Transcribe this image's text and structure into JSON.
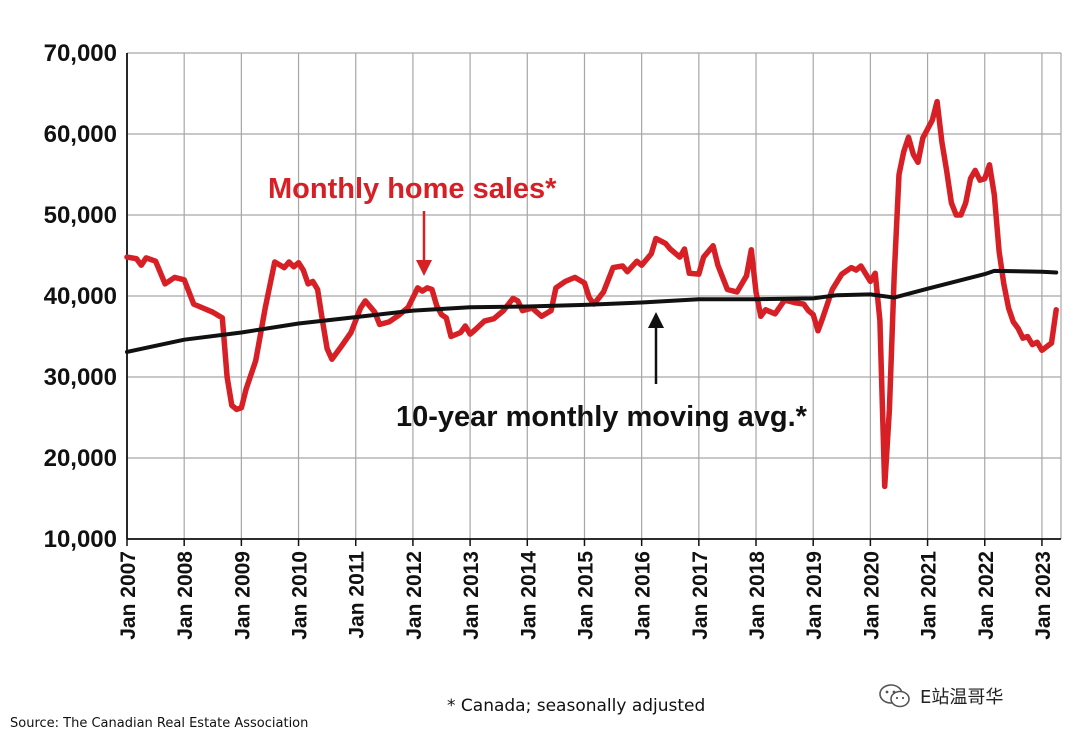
{
  "footnote": "* Canada; seasonally adjusted",
  "source": "Source: The Canadian Real Estate Association",
  "watermark": "E站温哥华",
  "chart_data": {
    "type": "line",
    "title": "",
    "xlabel": "",
    "ylabel": "",
    "ylim": [
      10000,
      70000
    ],
    "yticks": [
      10000,
      20000,
      30000,
      40000,
      50000,
      60000,
      70000
    ],
    "ytick_labels": [
      "10,000",
      "20,000",
      "30,000",
      "40,000",
      "50,000",
      "60,000",
      "70,000"
    ],
    "xlim": [
      "2007-01",
      "2023-05"
    ],
    "xtick_labels": [
      "Jan 2007",
      "Jan 2008",
      "Jan 2009",
      "Jan 2010",
      "Jan 2011",
      "Jan 2012",
      "Jan 2013",
      "Jan 2014",
      "Jan 2015",
      "Jan 2016",
      "Jan 2017",
      "Jan 2018",
      "Jan 2019",
      "Jan 2020",
      "Jan 2021",
      "Jan 2022",
      "Jan 2023"
    ],
    "grid": true,
    "annotations": [
      {
        "text": "Monthly home sales*",
        "color": "#d71f26"
      },
      {
        "text": "10-year monthly moving avg.*",
        "color": "#111111"
      }
    ],
    "series": [
      {
        "color": "#d71f26",
        "points": [
          [
            "2007-01",
            44800
          ],
          [
            "2007-03",
            44600
          ],
          [
            "2007-04",
            43800
          ],
          [
            "2007-05",
            44700
          ],
          [
            "2007-07",
            44300
          ],
          [
            "2007-09",
            41500
          ],
          [
            "2007-11",
            42300
          ],
          [
            "2008-01",
            42000
          ],
          [
            "2008-03",
            39000
          ],
          [
            "2008-05",
            38500
          ],
          [
            "2008-07",
            38000
          ],
          [
            "2008-09",
            37300
          ],
          [
            "2008-10",
            30000
          ],
          [
            "2008-11",
            26500
          ],
          [
            "2008-12",
            26000
          ],
          [
            "2009-01",
            26200
          ],
          [
            "2009-02",
            28500
          ],
          [
            "2009-04",
            32000
          ],
          [
            "2009-06",
            38500
          ],
          [
            "2009-08",
            44200
          ],
          [
            "2009-10",
            43500
          ],
          [
            "2009-11",
            44200
          ],
          [
            "2009-12",
            43600
          ],
          [
            "2010-01",
            44100
          ],
          [
            "2010-02",
            43200
          ],
          [
            "2010-03",
            41500
          ],
          [
            "2010-04",
            41800
          ],
          [
            "2010-05",
            40800
          ],
          [
            "2010-06",
            37000
          ],
          [
            "2010-07",
            33500
          ],
          [
            "2010-08",
            32200
          ],
          [
            "2010-10",
            33800
          ],
          [
            "2010-12",
            35500
          ],
          [
            "2011-02",
            38500
          ],
          [
            "2011-03",
            39400
          ],
          [
            "2011-05",
            38000
          ],
          [
            "2011-06",
            36500
          ],
          [
            "2011-08",
            36800
          ],
          [
            "2011-10",
            37600
          ],
          [
            "2011-12",
            38600
          ],
          [
            "2012-02",
            41000
          ],
          [
            "2012-03",
            40600
          ],
          [
            "2012-04",
            41000
          ],
          [
            "2012-05",
            40800
          ],
          [
            "2012-06",
            38800
          ],
          [
            "2012-07",
            37700
          ],
          [
            "2012-08",
            37300
          ],
          [
            "2012-09",
            35000
          ],
          [
            "2012-11",
            35500
          ],
          [
            "2012-12",
            36300
          ],
          [
            "2013-01",
            35300
          ],
          [
            "2013-02",
            35800
          ],
          [
            "2013-04",
            36900
          ],
          [
            "2013-06",
            37200
          ],
          [
            "2013-08",
            38200
          ],
          [
            "2013-10",
            39700
          ],
          [
            "2013-11",
            39400
          ],
          [
            "2013-12",
            38200
          ],
          [
            "2014-02",
            38500
          ],
          [
            "2014-04",
            37500
          ],
          [
            "2014-06",
            38200
          ],
          [
            "2014-07",
            41000
          ],
          [
            "2014-09",
            41800
          ],
          [
            "2014-11",
            42300
          ],
          [
            "2015-01",
            41600
          ],
          [
            "2015-02",
            39800
          ],
          [
            "2015-03",
            39000
          ],
          [
            "2015-05",
            40500
          ],
          [
            "2015-07",
            43500
          ],
          [
            "2015-09",
            43700
          ],
          [
            "2015-10",
            43000
          ],
          [
            "2015-12",
            44300
          ],
          [
            "2016-01",
            43800
          ],
          [
            "2016-03",
            45200
          ],
          [
            "2016-04",
            47100
          ],
          [
            "2016-06",
            46500
          ],
          [
            "2016-07",
            45800
          ],
          [
            "2016-09",
            44800
          ],
          [
            "2016-10",
            45800
          ],
          [
            "2016-11",
            42800
          ],
          [
            "2017-01",
            42700
          ],
          [
            "2017-02",
            44800
          ],
          [
            "2017-04",
            46200
          ],
          [
            "2017-05",
            43800
          ],
          [
            "2017-07",
            40800
          ],
          [
            "2017-09",
            40500
          ],
          [
            "2017-11",
            42500
          ],
          [
            "2017-12",
            45700
          ],
          [
            "2018-01",
            40500
          ],
          [
            "2018-02",
            37500
          ],
          [
            "2018-03",
            38300
          ],
          [
            "2018-05",
            37800
          ],
          [
            "2018-07",
            39500
          ],
          [
            "2018-09",
            39200
          ],
          [
            "2018-11",
            39000
          ],
          [
            "2018-12",
            38200
          ],
          [
            "2019-01",
            37700
          ],
          [
            "2019-02",
            35700
          ],
          [
            "2019-03",
            37300
          ],
          [
            "2019-05",
            40800
          ],
          [
            "2019-07",
            42700
          ],
          [
            "2019-09",
            43500
          ],
          [
            "2019-10",
            43200
          ],
          [
            "2019-11",
            43700
          ],
          [
            "2020-01",
            41800
          ],
          [
            "2020-02",
            42800
          ],
          [
            "2020-03",
            37000
          ],
          [
            "2020-04",
            16500
          ],
          [
            "2020-05",
            26000
          ],
          [
            "2020-06",
            42500
          ],
          [
            "2020-07",
            55000
          ],
          [
            "2020-08",
            57800
          ],
          [
            "2020-09",
            59600
          ],
          [
            "2020-10",
            57500
          ],
          [
            "2020-11",
            56500
          ],
          [
            "2020-12",
            59500
          ],
          [
            "2021-02",
            61700
          ],
          [
            "2021-03",
            64000
          ],
          [
            "2021-04",
            59000
          ],
          [
            "2021-05",
            55500
          ],
          [
            "2021-06",
            51500
          ],
          [
            "2021-07",
            50000
          ],
          [
            "2021-08",
            50000
          ],
          [
            "2021-09",
            51500
          ],
          [
            "2021-10",
            54500
          ],
          [
            "2021-11",
            55500
          ],
          [
            "2021-12",
            54300
          ],
          [
            "2022-01",
            54500
          ],
          [
            "2022-02",
            56200
          ],
          [
            "2022-03",
            52500
          ],
          [
            "2022-04",
            45500
          ],
          [
            "2022-05",
            41500
          ],
          [
            "2022-06",
            38500
          ],
          [
            "2022-07",
            36800
          ],
          [
            "2022-08",
            36000
          ],
          [
            "2022-09",
            34800
          ],
          [
            "2022-10",
            35000
          ],
          [
            "2022-11",
            34000
          ],
          [
            "2022-12",
            34300
          ],
          [
            "2023-01",
            33300
          ],
          [
            "2023-03",
            34200
          ],
          [
            "2023-04",
            38300
          ]
        ]
      },
      {
        "color": "#111111",
        "points": [
          [
            "2007-01",
            33100
          ],
          [
            "2008-01",
            34600
          ],
          [
            "2009-01",
            35500
          ],
          [
            "2010-01",
            36600
          ],
          [
            "2011-01",
            37400
          ],
          [
            "2012-01",
            38200
          ],
          [
            "2013-01",
            38600
          ],
          [
            "2014-01",
            38700
          ],
          [
            "2015-01",
            38900
          ],
          [
            "2016-01",
            39200
          ],
          [
            "2017-01",
            39600
          ],
          [
            "2018-01",
            39600
          ],
          [
            "2019-01",
            39700
          ],
          [
            "2019-06",
            40100
          ],
          [
            "2020-01",
            40200
          ],
          [
            "2020-06",
            39800
          ],
          [
            "2021-01",
            40900
          ],
          [
            "2022-01",
            42700
          ],
          [
            "2022-03",
            43100
          ],
          [
            "2023-01",
            43000
          ],
          [
            "2023-04",
            42900
          ]
        ]
      }
    ]
  }
}
